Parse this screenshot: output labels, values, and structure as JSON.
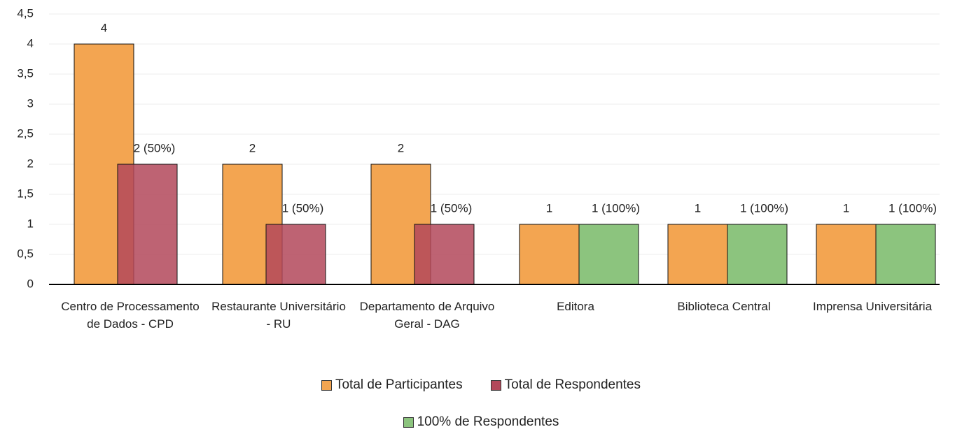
{
  "chart_data": {
    "type": "bar",
    "categories": [
      "Centro de Processamento de Dados - CPD",
      "Restaurante Universitário - RU",
      "Departamento de Arquivo Geral - DAG",
      "Editora",
      "Biblioteca Central",
      "Imprensa Universitária"
    ],
    "series": [
      {
        "name": "Total de Participantes",
        "color": "#f3a551",
        "values": [
          4,
          2,
          2,
          1,
          1,
          1
        ]
      },
      {
        "name": "Total de Respondentes",
        "color": "#b3485a",
        "values": [
          2,
          1,
          1,
          null,
          null,
          null
        ],
        "value_labels": [
          "2 (50%)",
          "1 (50%)",
          "1 (50%)",
          null,
          null,
          null
        ]
      },
      {
        "name": "100% de Respondentes",
        "color": "#8cc47e",
        "values": [
          null,
          null,
          null,
          1,
          1,
          1
        ],
        "value_labels": [
          null,
          null,
          null,
          "1 (100%)",
          "1 (100%)",
          "1 (100%)"
        ]
      }
    ],
    "ylim": [
      0,
      4.5
    ],
    "yticks": [
      0,
      {
        "value": 0.5,
        "label": "0,5"
      },
      1,
      {
        "value": 1.5,
        "label": "1,5"
      },
      2,
      {
        "value": 2.5,
        "label": "2,5"
      },
      3,
      {
        "value": 3.5,
        "label": "3,5"
      },
      4,
      {
        "value": 4.5,
        "label": "4,5"
      }
    ],
    "grid": true
  }
}
